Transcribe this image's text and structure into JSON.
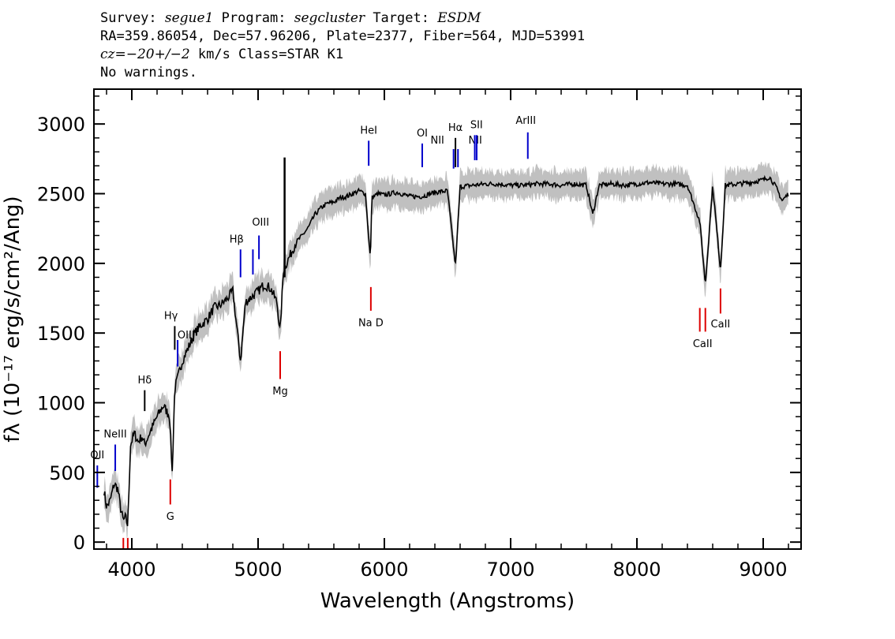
{
  "header": {
    "survey_label": "Survey: ",
    "survey": "segue1",
    "program_label": " Program: ",
    "program": "segcluster",
    "target_label": " Target: ",
    "target": "ESDM",
    "line2": "RA=359.86054, Dec=57.96206, Plate=2377, Fiber=564, MJD=53991",
    "cz_label": "cz",
    "cz_value": "=−20+/−2",
    "cz_rest": " km/s Class=STAR K1",
    "line4": "No warnings."
  },
  "chart_data": {
    "type": "line",
    "title": "",
    "xlabel": "Wavelength (Angstroms)",
    "ylabel": "fλ (10⁻¹⁷ erg/s/cm²/Ang)",
    "xlim": [
      3700,
      9300
    ],
    "ylim": [
      -50,
      3250
    ],
    "xticks": [
      4000,
      5000,
      6000,
      7000,
      8000,
      9000
    ],
    "xtick_labels": [
      "4000",
      "5000",
      "6000",
      "7000",
      "8000",
      "9000"
    ],
    "yticks": [
      0,
      500,
      1000,
      1500,
      2000,
      2500,
      3000
    ],
    "ytick_labels": [
      "0",
      "500",
      "1000",
      "1500",
      "2000",
      "2500",
      "3000"
    ],
    "series": [
      {
        "name": "flux",
        "color": "#000000",
        "x": [
          3780,
          3800,
          3830,
          3860,
          3890,
          3910,
          3933,
          3950,
          3968,
          3990,
          4020,
          4050,
          4080,
          4102,
          4130,
          4160,
          4200,
          4250,
          4300,
          4320,
          4340,
          4370,
          4400,
          4450,
          4500,
          4550,
          4600,
          4650,
          4700,
          4750,
          4800,
          4861,
          4900,
          4950,
          5000,
          5050,
          5100,
          5150,
          5175,
          5200,
          5250,
          5300,
          5350,
          5400,
          5450,
          5500,
          5550,
          5600,
          5650,
          5700,
          5750,
          5800,
          5850,
          5890,
          5900,
          5950,
          6000,
          6100,
          6200,
          6300,
          6400,
          6500,
          6563,
          6600,
          6700,
          6800,
          6900,
          7000,
          7100,
          7200,
          7300,
          7400,
          7500,
          7600,
          7650,
          7700,
          7800,
          7900,
          8000,
          8100,
          8200,
          8300,
          8400,
          8498,
          8542,
          8600,
          8662,
          8700,
          8800,
          8900,
          9000,
          9050,
          9100,
          9150,
          9200
        ],
        "y": [
          370,
          250,
          300,
          420,
          380,
          250,
          150,
          180,
          120,
          700,
          780,
          720,
          760,
          700,
          760,
          820,
          900,
          980,
          900,
          500,
          1100,
          1200,
          1300,
          1400,
          1500,
          1560,
          1600,
          1680,
          1700,
          1740,
          1800,
          1300,
          1720,
          1760,
          1800,
          1850,
          1820,
          1720,
          1500,
          1950,
          2050,
          2150,
          2200,
          2260,
          2350,
          2400,
          2430,
          2440,
          2470,
          2480,
          2500,
          2520,
          2500,
          2020,
          2470,
          2500,
          2490,
          2510,
          2480,
          2480,
          2510,
          2520,
          1980,
          2550,
          2560,
          2570,
          2570,
          2560,
          2560,
          2570,
          2570,
          2560,
          2570,
          2560,
          2350,
          2560,
          2570,
          2560,
          2570,
          2580,
          2570,
          2570,
          2560,
          2300,
          1850,
          2560,
          1950,
          2560,
          2570,
          2580,
          2600,
          2620,
          2550,
          2450,
          2500
        ]
      }
    ],
    "error_band": {
      "name": "uncertainty",
      "color": "#c0c0c0",
      "halfwidth": 110
    },
    "emission_lines": [
      {
        "label": "OII",
        "x": 3727,
        "y0": 390,
        "y1": 550,
        "color": "#0000cc",
        "lx": 3727,
        "ly": 600
      },
      {
        "label": "NeIII",
        "x": 3869,
        "y0": 510,
        "y1": 700,
        "color": "#0000cc",
        "lx": 3869,
        "ly": 750
      },
      {
        "label": "Hδ",
        "x": 4102,
        "y0": 940,
        "y1": 1090,
        "color": "#000000",
        "lx": 4102,
        "ly": 1140
      },
      {
        "label": "Hγ",
        "x": 4340,
        "y0": 1380,
        "y1": 1550,
        "color": "#000000",
        "lx": 4310,
        "ly": 1600
      },
      {
        "label": "OIII",
        "x": 4363,
        "y0": 1260,
        "y1": 1450,
        "color": "#0000cc",
        "lx": 4430,
        "ly": 1460
      },
      {
        "label": "Hβ",
        "x": 4861,
        "y0": 1900,
        "y1": 2100,
        "color": "#0000cc",
        "lx": 4830,
        "ly": 2150
      },
      {
        "label": "OIII",
        "x": 4959,
        "y0": 1920,
        "y1": 2100,
        "color": "#0000cc",
        "lx": 5020,
        "ly": 2270
      },
      {
        "label": "OIII",
        "x": 5007,
        "y0": 2030,
        "y1": 2200,
        "color": "#0000cc",
        "lx": 5020,
        "ly": 2270
      },
      {
        "label": "HeI",
        "x": 5876,
        "y0": 2700,
        "y1": 2880,
        "color": "#0000cc",
        "lx": 5876,
        "ly": 2930
      },
      {
        "label": "OI",
        "x": 6300,
        "y0": 2690,
        "y1": 2860,
        "color": "#0000cc",
        "lx": 6300,
        "ly": 2910
      },
      {
        "label": "NII",
        "x": 6548,
        "y0": 2680,
        "y1": 2820,
        "color": "#0000cc",
        "lx": 6420,
        "ly": 2860
      },
      {
        "label": "Hα",
        "x": 6563,
        "y0": 2690,
        "y1": 2900,
        "color": "#000000",
        "lx": 6563,
        "ly": 2950
      },
      {
        "label": "NII",
        "x": 6583,
        "y0": 2690,
        "y1": 2820,
        "color": "#0000cc",
        "lx": 6720,
        "ly": 2860
      },
      {
        "label": "SII",
        "x": 6716,
        "y0": 2740,
        "y1": 2920,
        "color": "#0000cc",
        "lx": 6730,
        "ly": 2970
      },
      {
        "label": "SII",
        "x": 6731,
        "y0": 2740,
        "y1": 2920,
        "color": "#0000cc",
        "lx": 6730,
        "ly": 2970
      },
      {
        "label": "ArIII",
        "x": 7136,
        "y0": 2750,
        "y1": 2940,
        "color": "#0000cc",
        "lx": 7120,
        "ly": 3000
      }
    ],
    "absorption_lines": [
      {
        "label": "G",
        "x": 4305,
        "y0": 270,
        "y1": 450,
        "color": "#dd0000",
        "lx": 4305,
        "ly": 160
      },
      {
        "label": "Mg",
        "x": 5175,
        "y0": 1170,
        "y1": 1370,
        "color": "#dd0000",
        "lx": 5175,
        "ly": 1060
      },
      {
        "label": "Na  D",
        "x": 5893,
        "y0": 1660,
        "y1": 1830,
        "color": "#dd0000",
        "lx": 5893,
        "ly": 1550
      },
      {
        "label": "CaII",
        "x": 8498,
        "y0": 1510,
        "y1": 1680,
        "color": "#dd0000",
        "lx": 8520,
        "ly": 1400
      },
      {
        "label": "CaII",
        "x": 8542,
        "y0": 1510,
        "y1": 1680,
        "color": "#dd0000",
        "lx": 8520,
        "ly": 1400
      },
      {
        "label": "CaII",
        "x": 8662,
        "y0": 1640,
        "y1": 1820,
        "color": "#dd0000",
        "lx": 8662,
        "ly": 1540
      },
      {
        "label": "",
        "x": 3933,
        "y0": -50,
        "y1": 30,
        "color": "#dd0000",
        "lx": 3933,
        "ly": -50
      },
      {
        "label": "",
        "x": 3968,
        "y0": -50,
        "y1": 30,
        "color": "#dd0000",
        "lx": 3968,
        "ly": -50
      }
    ]
  }
}
